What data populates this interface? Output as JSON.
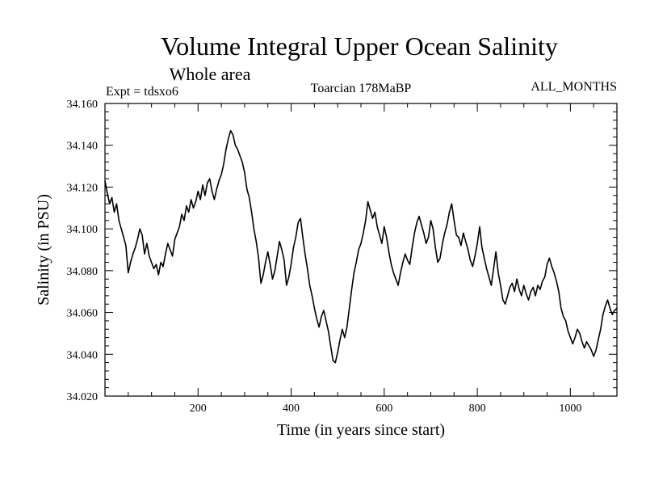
{
  "chart_data": {
    "type": "line",
    "title": "Volume Integral Upper Ocean Salinity",
    "subtitle": "Whole area",
    "expt_label": "Expt = tdsxo6",
    "center_label": "Toarcian 178MaBP",
    "right_label": "ALL_MONTHS",
    "xlabel": "Time (in years since start)",
    "ylabel": "Salinity (in PSU)",
    "xlim": [
      0,
      1100
    ],
    "ylim": [
      34.02,
      34.16
    ],
    "xticks": [
      200,
      400,
      600,
      800,
      1000
    ],
    "xtick_labels": [
      "200",
      "400",
      "600",
      "800",
      "1000"
    ],
    "yticks": [
      34.02,
      34.04,
      34.06,
      34.08,
      34.1,
      34.12,
      34.14,
      34.16
    ],
    "ytick_labels": [
      "34.020",
      "34.040",
      "34.060",
      "34.080",
      "34.100",
      "34.120",
      "34.140",
      "34.160"
    ],
    "grid": false,
    "series": [
      {
        "name": "Salinity",
        "x": [
          0,
          5,
          10,
          15,
          20,
          25,
          30,
          35,
          40,
          45,
          50,
          55,
          60,
          65,
          70,
          75,
          80,
          85,
          90,
          95,
          100,
          105,
          110,
          115,
          120,
          125,
          130,
          135,
          140,
          145,
          150,
          155,
          160,
          165,
          170,
          175,
          180,
          185,
          190,
          195,
          200,
          205,
          210,
          215,
          220,
          225,
          230,
          235,
          240,
          245,
          250,
          255,
          260,
          265,
          270,
          275,
          280,
          285,
          290,
          295,
          300,
          305,
          310,
          315,
          320,
          325,
          330,
          335,
          340,
          345,
          350,
          355,
          360,
          365,
          370,
          375,
          380,
          385,
          390,
          395,
          400,
          405,
          410,
          415,
          420,
          425,
          430,
          435,
          440,
          445,
          450,
          455,
          460,
          465,
          470,
          475,
          480,
          485,
          490,
          495,
          500,
          505,
          510,
          515,
          520,
          525,
          530,
          535,
          540,
          545,
          550,
          555,
          560,
          565,
          570,
          575,
          580,
          585,
          590,
          595,
          600,
          605,
          610,
          615,
          620,
          625,
          630,
          635,
          640,
          645,
          650,
          655,
          660,
          665,
          670,
          675,
          680,
          685,
          690,
          695,
          700,
          705,
          710,
          715,
          720,
          725,
          730,
          735,
          740,
          745,
          750,
          755,
          760,
          765,
          770,
          775,
          780,
          785,
          790,
          795,
          800,
          805,
          810,
          815,
          820,
          825,
          830,
          835,
          840,
          845,
          850,
          855,
          860,
          865,
          870,
          875,
          880,
          885,
          890,
          895,
          900,
          905,
          910,
          915,
          920,
          925,
          930,
          935,
          940,
          945,
          950,
          955,
          960,
          965,
          970,
          975,
          980,
          985,
          990,
          995,
          1000,
          1005,
          1010,
          1015,
          1020,
          1025,
          1030,
          1035,
          1040,
          1045,
          1050,
          1055,
          1060,
          1065,
          1070,
          1075,
          1080,
          1085,
          1090,
          1095,
          1100
        ],
        "y": [
          34.123,
          34.117,
          34.112,
          34.115,
          34.108,
          34.112,
          34.104,
          34.1,
          34.096,
          34.092,
          34.079,
          34.084,
          34.088,
          34.091,
          34.095,
          34.1,
          34.097,
          34.088,
          34.093,
          34.087,
          34.084,
          34.081,
          34.083,
          34.078,
          34.084,
          34.082,
          34.088,
          34.093,
          34.09,
          34.087,
          34.095,
          34.098,
          34.101,
          34.107,
          34.104,
          34.111,
          34.108,
          34.114,
          34.11,
          34.113,
          34.118,
          34.114,
          34.121,
          34.116,
          34.122,
          34.124,
          34.118,
          34.114,
          34.119,
          34.123,
          34.126,
          34.131,
          34.138,
          34.143,
          34.147,
          34.145,
          34.14,
          34.138,
          34.135,
          34.132,
          34.127,
          34.119,
          34.115,
          34.108,
          34.1,
          34.094,
          34.086,
          34.074,
          34.078,
          34.084,
          34.089,
          34.083,
          34.076,
          34.08,
          34.087,
          34.094,
          34.09,
          34.085,
          34.073,
          34.077,
          34.083,
          34.091,
          34.096,
          34.103,
          34.105,
          34.096,
          34.088,
          34.081,
          34.073,
          34.068,
          34.062,
          34.057,
          34.053,
          34.058,
          34.061,
          34.056,
          34.051,
          34.044,
          34.037,
          34.036,
          34.041,
          34.047,
          34.052,
          34.048,
          34.053,
          34.062,
          34.071,
          34.079,
          34.084,
          34.09,
          34.093,
          34.098,
          34.104,
          34.113,
          34.109,
          34.105,
          34.108,
          34.101,
          34.097,
          34.093,
          34.101,
          34.096,
          34.089,
          34.083,
          34.079,
          34.076,
          34.073,
          34.079,
          34.084,
          34.088,
          34.085,
          34.083,
          34.091,
          34.098,
          34.103,
          34.106,
          34.102,
          34.098,
          34.093,
          34.096,
          34.104,
          34.1,
          34.091,
          34.084,
          34.086,
          34.093,
          34.098,
          34.102,
          34.108,
          34.112,
          34.104,
          34.097,
          34.096,
          34.092,
          34.098,
          34.094,
          34.09,
          34.085,
          34.082,
          34.087,
          34.093,
          34.101,
          34.091,
          34.086,
          34.081,
          34.077,
          34.073,
          34.081,
          34.089,
          34.079,
          34.073,
          34.066,
          34.064,
          34.068,
          34.072,
          34.074,
          34.07,
          34.076,
          34.071,
          34.068,
          34.073,
          34.069,
          34.066,
          34.07,
          34.072,
          34.068,
          34.073,
          34.071,
          34.075,
          34.077,
          34.083,
          34.086,
          34.082,
          34.079,
          34.075,
          34.07,
          34.062,
          34.058,
          34.056,
          34.051,
          34.048,
          34.045,
          34.048,
          34.052,
          34.05,
          34.046,
          34.043,
          34.046,
          34.044,
          34.042,
          34.039,
          34.042,
          34.047,
          34.052,
          34.059,
          34.063,
          34.066,
          34.062,
          34.059,
          34.061,
          34.062
        ]
      }
    ]
  }
}
